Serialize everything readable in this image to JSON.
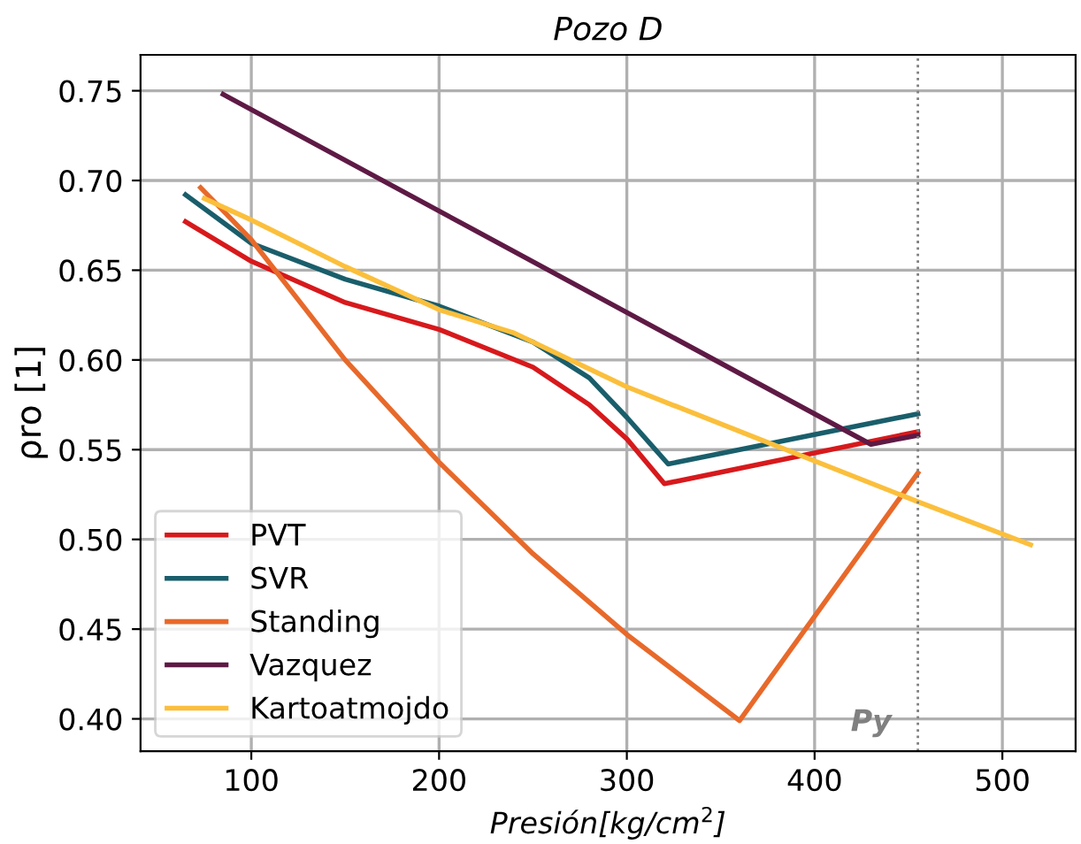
{
  "chart_data": {
    "type": "line",
    "title": "Pozo D",
    "xlabel": "Presión[kg/cm$^{2}$]",
    "ylabel": "ρro [1]",
    "xlim": [
      41,
      539
    ],
    "ylim": [
      0.382,
      0.77
    ],
    "xticks": [
      100,
      200,
      300,
      400,
      500
    ],
    "yticks": [
      {
        "value": 0.4,
        "label": "0.40"
      },
      0.45,
      {
        "value": 0.5,
        "label": "0.50"
      },
      0.55,
      {
        "value": 0.6,
        "label": "0.60"
      },
      0.65,
      {
        "value": 0.7,
        "label": "0.70"
      },
      0.75
    ],
    "grid": true,
    "legend": "bottom left",
    "line_style": "solid",
    "marker": "none",
    "series": [
      {
        "name": "PVT",
        "color": "#d7191c",
        "x": [
          65,
          100,
          150,
          200,
          250,
          280,
          300,
          320,
          455
        ],
        "values": [
          0.677,
          0.655,
          0.632,
          0.617,
          0.596,
          0.575,
          0.556,
          0.531,
          0.56
        ]
      },
      {
        "name": "SVR",
        "color": "#1a5e6b",
        "x": [
          65,
          100,
          150,
          200,
          250,
          280,
          300,
          322,
          455
        ],
        "values": [
          0.692,
          0.665,
          0.645,
          0.63,
          0.61,
          0.59,
          0.568,
          0.542,
          0.57
        ]
      },
      {
        "name": "Standing",
        "color": "#e8692a",
        "x": [
          73,
          100,
          150,
          200,
          250,
          300,
          360,
          455
        ],
        "values": [
          0.696,
          0.667,
          0.6,
          0.543,
          0.492,
          0.447,
          0.399,
          0.537
        ]
      },
      {
        "name": "Vazquez",
        "color": "#5e1a45",
        "x": [
          85,
          430,
          455
        ],
        "values": [
          0.748,
          0.553,
          0.558
        ]
      },
      {
        "name": "Kartoatmojdo",
        "color": "#fbbf3c",
        "x": [
          75,
          100,
          150,
          200,
          240,
          300,
          455,
          515
        ],
        "values": [
          0.69,
          0.678,
          0.652,
          0.628,
          0.615,
          0.585,
          0.521,
          0.497
        ]
      }
    ],
    "ref_lines": [
      {
        "axis": "x",
        "value": 455,
        "label": "Py",
        "color": "#808080",
        "line_style": "dotted"
      }
    ]
  }
}
